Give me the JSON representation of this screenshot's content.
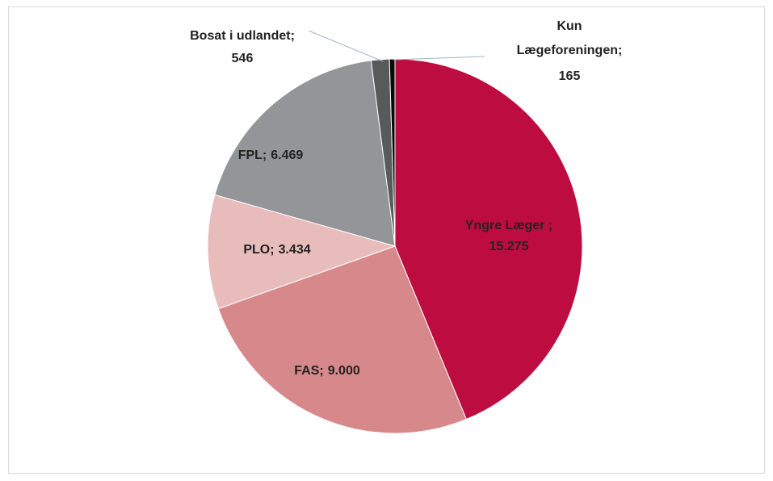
{
  "chart_data": {
    "type": "pie",
    "categories": [
      "Yngre Læger ;",
      "FAS;",
      "PLO;",
      "FPL;",
      "Bosat i udlandet;",
      "Kun Lægeforeningen;"
    ],
    "values": [
      15275,
      9000,
      3434,
      6469,
      546,
      165
    ],
    "value_labels": [
      "15.275",
      "9.000",
      "3.434",
      "6.469",
      "546",
      "165"
    ],
    "colors": [
      "#bd0d40",
      "#d7888b",
      "#e8bcba",
      "#939598",
      "#58595b",
      "#0a0a0a"
    ]
  }
}
